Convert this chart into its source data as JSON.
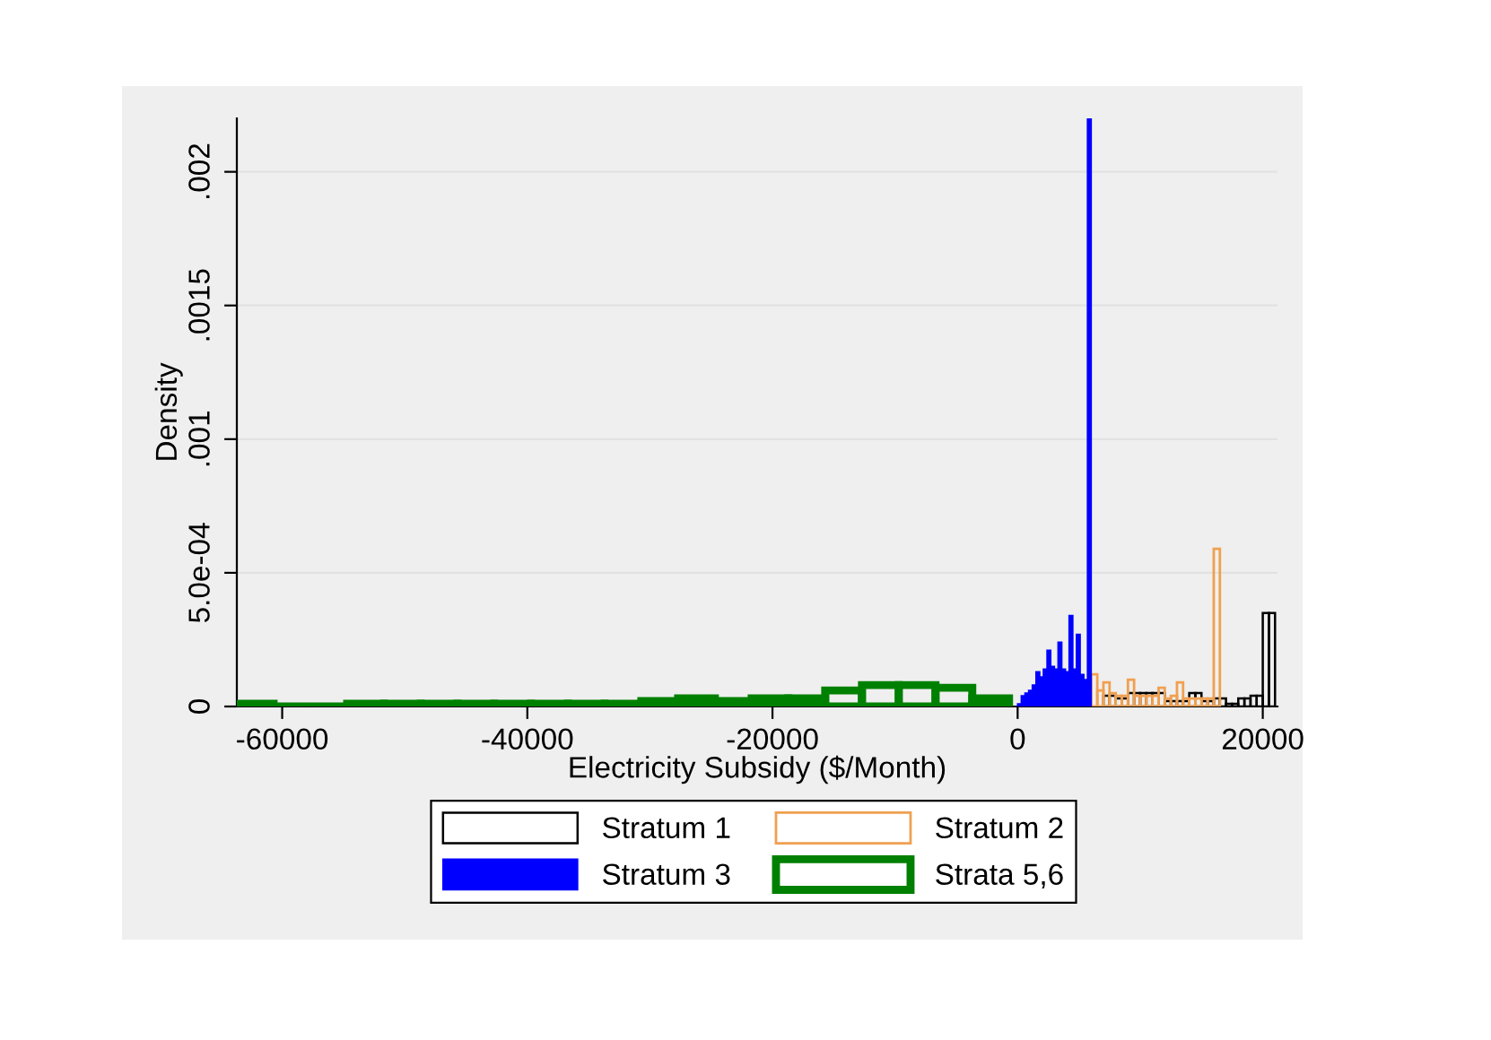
{
  "chart_data": {
    "type": "histogram",
    "xlabel": "Electricity Subsidy ($/Month)",
    "ylabel": "Density",
    "xlim": [
      -63700,
      21200
    ],
    "xticks": [
      -60000,
      -40000,
      -20000,
      0,
      20000
    ],
    "ylim": [
      0,
      0.0022
    ],
    "yticks": [
      0,
      {
        "value": 0.0005,
        "label": "5.0e-04"
      },
      {
        "value": 0.001,
        "label": ".001"
      },
      {
        "value": 0.0015,
        "label": ".0015"
      },
      {
        "value": 0.002,
        "label": ".002"
      }
    ],
    "grid": "y",
    "legend": "bottom",
    "bins": [
      -63700,
      -60700,
      -57700,
      -54700,
      -51700,
      -48700,
      -45700,
      -42700,
      -39700,
      -36700,
      -33700,
      -30700,
      -27700,
      -24700,
      -21700,
      -18700,
      -15700,
      -12700,
      -9700,
      -6700,
      -3700,
      -700,
      0,
      300,
      600,
      900,
      1200,
      1500,
      1800,
      2100,
      2400,
      2700,
      3000,
      3300,
      3600,
      3900,
      4200,
      4500,
      4800,
      5100,
      5400,
      5700,
      6000,
      6500,
      7000,
      7500,
      8000,
      8500,
      9000,
      9500,
      10000,
      10500,
      11000,
      11500,
      12000,
      12500,
      13000,
      13500,
      14000,
      14500,
      15000,
      15500,
      16000,
      16500,
      17000,
      17500,
      18000,
      18500,
      19000,
      19500,
      20000,
      20500,
      21000
    ],
    "series": [
      {
        "name": "Stratum 1",
        "color": "#000000",
        "values": [
          null,
          null,
          null,
          null,
          null,
          null,
          null,
          null,
          null,
          null,
          null,
          null,
          null,
          null,
          null,
          null,
          null,
          null,
          null,
          null,
          null,
          null,
          null,
          null,
          null,
          null,
          null,
          null,
          null,
          null,
          null,
          null,
          null,
          null,
          null,
          null,
          null,
          null,
          null,
          null,
          null,
          null,
          null,
          null,
          4e-05,
          4e-05,
          3e-05,
          3e-05,
          5e-05,
          5e-05,
          5e-05,
          5e-05,
          5e-05,
          5e-05,
          2e-05,
          2e-05,
          2e-05,
          2e-05,
          5e-05,
          5e-05,
          2e-05,
          2e-05,
          3e-05,
          3e-05,
          1e-05,
          1e-05,
          3e-05,
          3e-05,
          4e-05,
          4e-05,
          0.00035,
          0.00035
        ]
      },
      {
        "name": "Stratum 2",
        "color": "#f0a050",
        "values": [
          null,
          null,
          null,
          null,
          null,
          null,
          null,
          null,
          null,
          null,
          null,
          null,
          null,
          null,
          null,
          null,
          null,
          null,
          null,
          null,
          null,
          null,
          null,
          null,
          null,
          null,
          null,
          null,
          null,
          null,
          null,
          null,
          null,
          null,
          null,
          null,
          null,
          null,
          null,
          null,
          null,
          null,
          0.00012,
          6e-05,
          9e-05,
          5e-05,
          4e-05,
          4e-05,
          0.0001,
          4e-05,
          4e-05,
          4e-05,
          4e-05,
          7e-05,
          3e-05,
          4e-05,
          9e-05,
          3e-05,
          3e-05,
          3e-05,
          3e-05,
          3e-05,
          0.00059,
          null,
          null,
          null,
          null,
          null,
          null,
          null,
          null,
          null
        ]
      },
      {
        "name": "Stratum 3",
        "color": "#0000ff",
        "values": [
          null,
          null,
          null,
          null,
          null,
          null,
          null,
          null,
          null,
          null,
          null,
          null,
          null,
          null,
          null,
          null,
          null,
          null,
          null,
          null,
          null,
          null,
          1e-05,
          4e-05,
          5e-05,
          6e-05,
          8e-05,
          0.00013,
          0.00011,
          0.00014,
          0.00021,
          0.00015,
          0.00014,
          0.00024,
          0.00014,
          0.00013,
          0.00034,
          0.00014,
          0.00027,
          0.00012,
          0.0001,
          0.0022,
          null,
          null,
          null,
          null,
          null,
          null,
          null,
          null,
          null,
          null,
          null,
          null,
          null,
          null,
          null,
          null,
          null,
          null,
          null,
          null,
          null,
          null,
          null,
          null,
          null,
          null,
          null,
          null,
          null,
          null
        ]
      },
      {
        "name": "Strata 5,6",
        "color": "#008000",
        "values": [
          1e-05,
          0,
          0,
          1e-05,
          1e-05,
          1e-05,
          1e-05,
          1e-05,
          1e-05,
          1e-05,
          1e-05,
          2e-05,
          3e-05,
          2e-05,
          3e-05,
          3e-05,
          6e-05,
          8e-05,
          8e-05,
          7e-05,
          3e-05,
          null,
          null,
          null,
          null,
          null,
          null,
          null,
          null,
          null,
          null,
          null,
          null,
          null,
          null,
          null,
          null,
          null,
          null,
          null,
          null,
          null,
          null,
          null,
          null,
          null,
          null,
          null,
          null,
          null,
          null,
          null,
          null,
          null,
          null,
          null,
          null,
          null,
          null,
          null,
          null,
          null,
          null,
          null,
          null,
          null,
          null,
          null,
          null,
          null,
          null,
          null
        ]
      }
    ]
  }
}
